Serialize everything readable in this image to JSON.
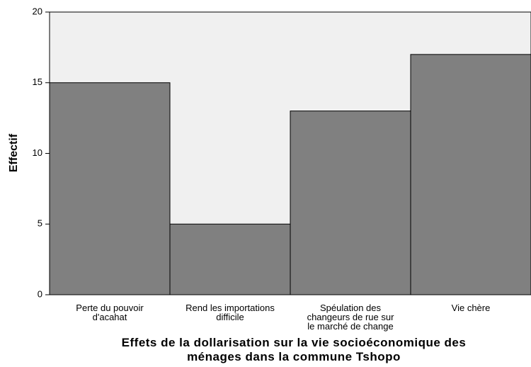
{
  "chart_data": {
    "type": "bar",
    "title": "Effets de la dollarisation sur la vie socioéconomique des\nménages dans la commune Tshopo",
    "y_label": "Effectif",
    "categories": [
      "Perte du pouvoir\nd'acahat",
      "Rend les importations\ndifficile",
      "Spéulation des\nchangeurs de rue sur\nle marché de change",
      "Vie chère"
    ],
    "values": [
      15,
      5,
      13,
      17
    ],
    "color": "#808080",
    "ylim": [
      0,
      20
    ],
    "yticks": [
      0,
      5,
      10,
      15,
      20
    ],
    "grid": false
  }
}
